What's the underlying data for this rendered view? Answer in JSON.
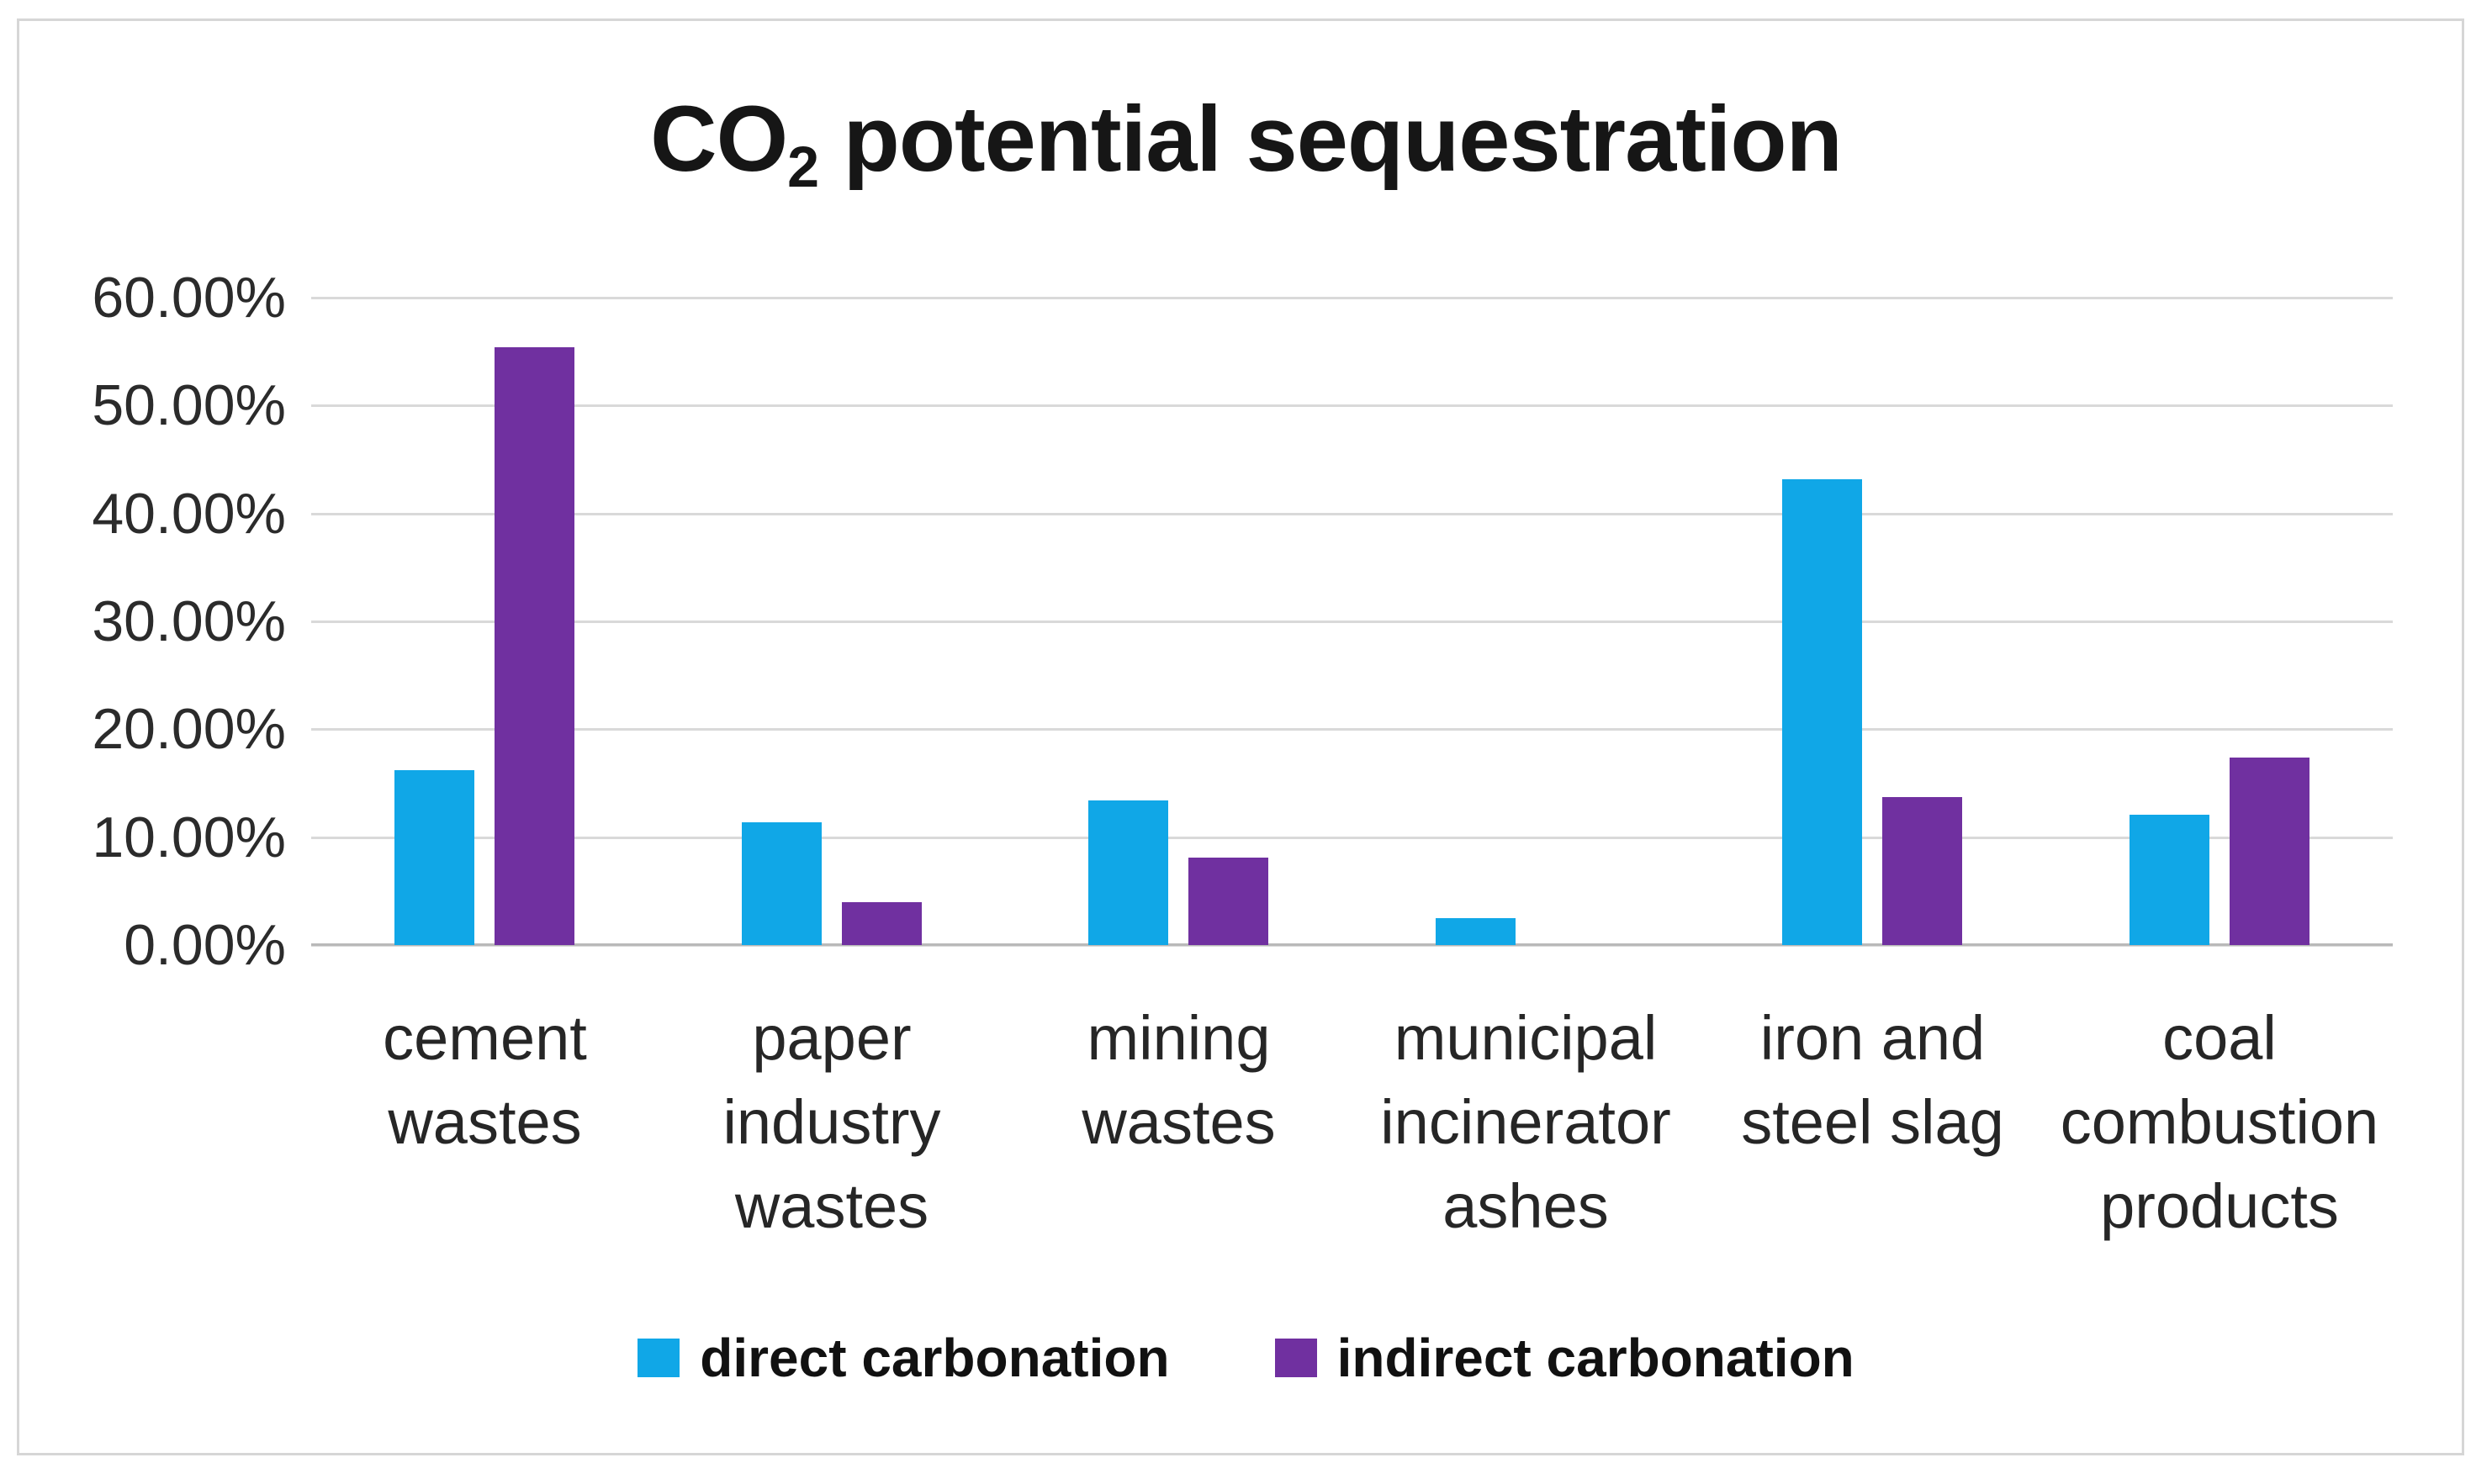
{
  "chart_data": {
    "type": "bar",
    "title": "CO₂ potential sequestration",
    "title_parts": {
      "prefix": "CO",
      "subscript": "2",
      "suffix": " potential sequestration"
    },
    "categories": [
      "cement wastes",
      "paper industry wastes",
      "mining wastes",
      "municipal incinerator ashes",
      "iron and steel slag",
      "coal combustion products"
    ],
    "category_label_lines": [
      [
        "cement",
        "wastes"
      ],
      [
        "paper",
        "industry",
        "wastes"
      ],
      [
        "mining",
        "wastes"
      ],
      [
        "municipal",
        "incinerator",
        "ashes"
      ],
      [
        "iron and",
        "steel slag"
      ],
      [
        "coal",
        "combustion",
        "products"
      ]
    ],
    "series": [
      {
        "name": "direct carbonation",
        "color": "#10a7e7",
        "values_pct": [
          16.2,
          11.4,
          13.4,
          2.5,
          43.2,
          12.1
        ]
      },
      {
        "name": "indirect carbonation",
        "color": "#7030a0",
        "values_pct": [
          55.4,
          4.0,
          8.1,
          0.0,
          13.7,
          17.4
        ]
      }
    ],
    "y_axis": {
      "tick_labels": [
        "60.00%",
        "50.00%",
        "40.00%",
        "30.00%",
        "20.00%",
        "10.00%",
        "0.00%"
      ],
      "min_pct": 0,
      "max_pct": 60,
      "tick_step_pct": 10
    },
    "grid": true,
    "legend_position": "bottom",
    "colors": {
      "gridline": "#d9d9d9",
      "axis_line": "#b9b9b9",
      "text": "#262626",
      "frame_border": "#d6d6d6",
      "background": "#ffffff"
    }
  }
}
